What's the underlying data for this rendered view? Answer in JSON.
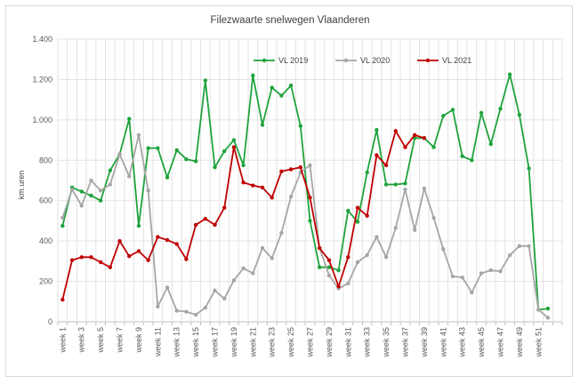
{
  "chart_data": {
    "type": "line",
    "title": "Filezwaarte snelwegen Vlaanderen",
    "xlabel": "",
    "ylabel": "km.uren",
    "ylim": [
      0,
      1400
    ],
    "yticks": [
      0,
      200,
      400,
      600,
      800,
      1000,
      1200,
      1400
    ],
    "ytick_labels": [
      "0",
      "200",
      "400",
      "600",
      "800",
      "1.000",
      "1.200",
      "1.400"
    ],
    "categories": [
      "week 1",
      "week 2",
      "week 3",
      "week 4",
      "week 5",
      "week 6",
      "week 7",
      "week 8",
      "week 9",
      "week 10",
      "week 11",
      "week 12",
      "week 13",
      "week 14",
      "week 15",
      "week 16",
      "week 17",
      "week 18",
      "week 19",
      "week 20",
      "week 21",
      "week 22",
      "week 23",
      "week 24",
      "week 25",
      "week 26",
      "week 27",
      "week 28",
      "week 29",
      "week 30",
      "week 31",
      "week 32",
      "week 33",
      "week 34",
      "week 35",
      "week 36",
      "week 37",
      "week 38",
      "week 39",
      "week 40",
      "week 41",
      "week 42",
      "week 43",
      "week 44",
      "week 45",
      "week 46",
      "week 47",
      "week 48",
      "week 49",
      "week 50",
      "week 51",
      "week 52",
      "week 53"
    ],
    "xtick_labels": [
      "week 1",
      "week 3",
      "week 5",
      "week 7",
      "week 9",
      "week 11",
      "week 13",
      "week 15",
      "week 17",
      "week 19",
      "week 21",
      "week 23",
      "week 25",
      "week 27",
      "week 29",
      "week 31",
      "week 33",
      "week 35",
      "week 37",
      "week 39",
      "week 41",
      "week 43",
      "week 45",
      "week 47",
      "week 49",
      "week 51"
    ],
    "grid": true,
    "legend_position": "top",
    "series": [
      {
        "name": "VL 2019",
        "color": "#1fa33d",
        "values": [
          475,
          665,
          645,
          625,
          600,
          750,
          830,
          1005,
          475,
          860,
          860,
          715,
          850,
          805,
          795,
          1195,
          765,
          845,
          900,
          775,
          1220,
          975,
          1160,
          1120,
          1170,
          970,
          500,
          270,
          270,
          255,
          550,
          495,
          740,
          950,
          680,
          680,
          685,
          910,
          910,
          865,
          1020,
          1050,
          820,
          800,
          1035,
          880,
          1055,
          1225,
          1025,
          760,
          60,
          65,
          null
        ]
      },
      {
        "name": "VL 2020",
        "color": "#a6a6a6",
        "values": [
          515,
          655,
          575,
          700,
          650,
          680,
          830,
          720,
          925,
          650,
          75,
          170,
          55,
          50,
          35,
          70,
          155,
          115,
          205,
          265,
          240,
          365,
          315,
          440,
          620,
          740,
          775,
          365,
          230,
          165,
          190,
          295,
          330,
          420,
          320,
          465,
          655,
          455,
          660,
          515,
          360,
          225,
          220,
          145,
          240,
          255,
          250,
          330,
          375,
          375,
          60,
          20,
          null
        ]
      },
      {
        "name": "VL 2021",
        "color": "#c00000",
        "values": [
          110,
          305,
          320,
          320,
          295,
          270,
          400,
          325,
          350,
          305,
          420,
          405,
          385,
          310,
          480,
          510,
          480,
          565,
          865,
          690,
          675,
          665,
          615,
          745,
          755,
          765,
          615,
          365,
          305,
          175,
          320,
          565,
          525,
          825,
          775,
          945,
          865,
          925,
          910,
          null,
          null,
          null,
          null,
          null,
          null,
          null,
          null,
          null,
          null,
          null,
          null,
          null,
          null
        ]
      }
    ]
  }
}
